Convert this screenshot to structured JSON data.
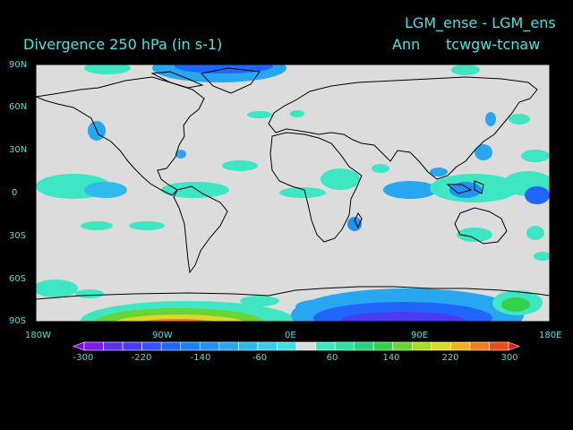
{
  "header": {
    "experiment": "LGM_ense - LGM_ens",
    "variable": "Divergence   250 hPa  (in s-1)",
    "season": "Ann",
    "fields": "tcwgw-tcnaw"
  },
  "map": {
    "lat_labels": [
      "90N",
      "60N",
      "30N",
      "0",
      "30S",
      "60S",
      "90S"
    ],
    "lon_labels": [
      "180W",
      "90W",
      "0E",
      "90E",
      "180E"
    ],
    "background_color": "#dcdcdc"
  },
  "colorbar": {
    "labels": [
      "-300",
      "-220",
      "-140",
      "-60",
      "60",
      "140",
      "220",
      "300"
    ],
    "colors": [
      "#8a00e6",
      "#7a1be8",
      "#5f2ef0",
      "#4a3cf6",
      "#3650fa",
      "#2066fc",
      "#1c7ff8",
      "#2092f4",
      "#28a6f0",
      "#30baec",
      "#3acce8",
      "#46dae0",
      "#dcdcdc",
      "#3ee6c4",
      "#2fe0a0",
      "#25d47a",
      "#34d24a",
      "#6ad432",
      "#a8dc2a",
      "#dcd82a",
      "#f0b024",
      "#f0801e",
      "#e84e1a",
      "#d81c1c"
    ]
  }
}
